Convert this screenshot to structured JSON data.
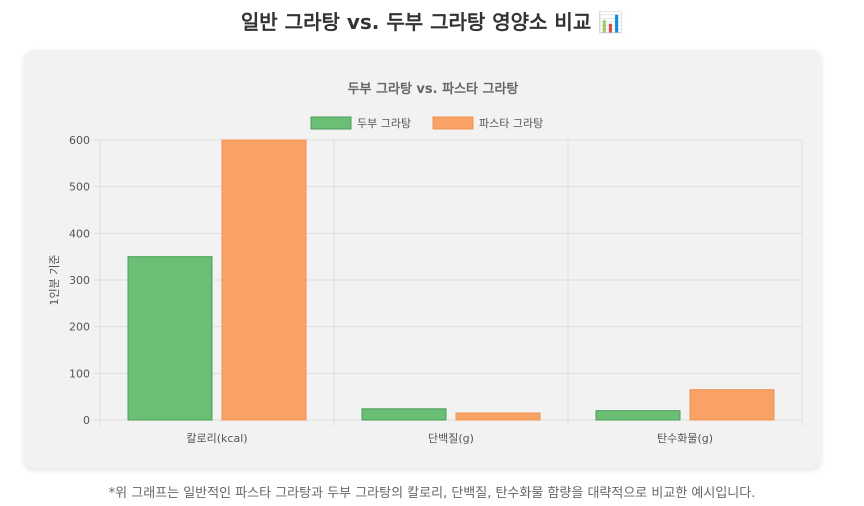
{
  "page": {
    "title": "일반 그라탕 vs. 두부 그라탕 영양소 비교 📊",
    "note": "*위 그래프는 일반적인 파스타 그라탕과 두부 그라탕의 칼로리, 단백질, 탄수화물 함량을 대략적으로 비교한 예시입니다."
  },
  "colors": {
    "series_1": "#6abf75",
    "series_1_border": "#4a9e55",
    "series_2": "#f9a266",
    "series_2_border": "#f4934f",
    "grid": "#dddddd",
    "axis_text": "#555555",
    "card_bg": "#f2f2f2"
  },
  "chart_data": {
    "type": "bar",
    "title": "두부 그라탕 vs. 파스타 그라탕",
    "xlabel": "",
    "ylabel": "1인분 기준",
    "categories": [
      "칼로리(kcal)",
      "단백질(g)",
      "탄수화물(g)"
    ],
    "series": [
      {
        "name": "두부 그라탕",
        "values": [
          350,
          24,
          20
        ]
      },
      {
        "name": "파스타 그라탕",
        "values": [
          600,
          15,
          65
        ]
      }
    ],
    "ylim": [
      0,
      600
    ],
    "yticks": [
      0,
      100,
      200,
      300,
      400,
      500,
      600
    ],
    "grid": true,
    "legend": "top-center"
  }
}
